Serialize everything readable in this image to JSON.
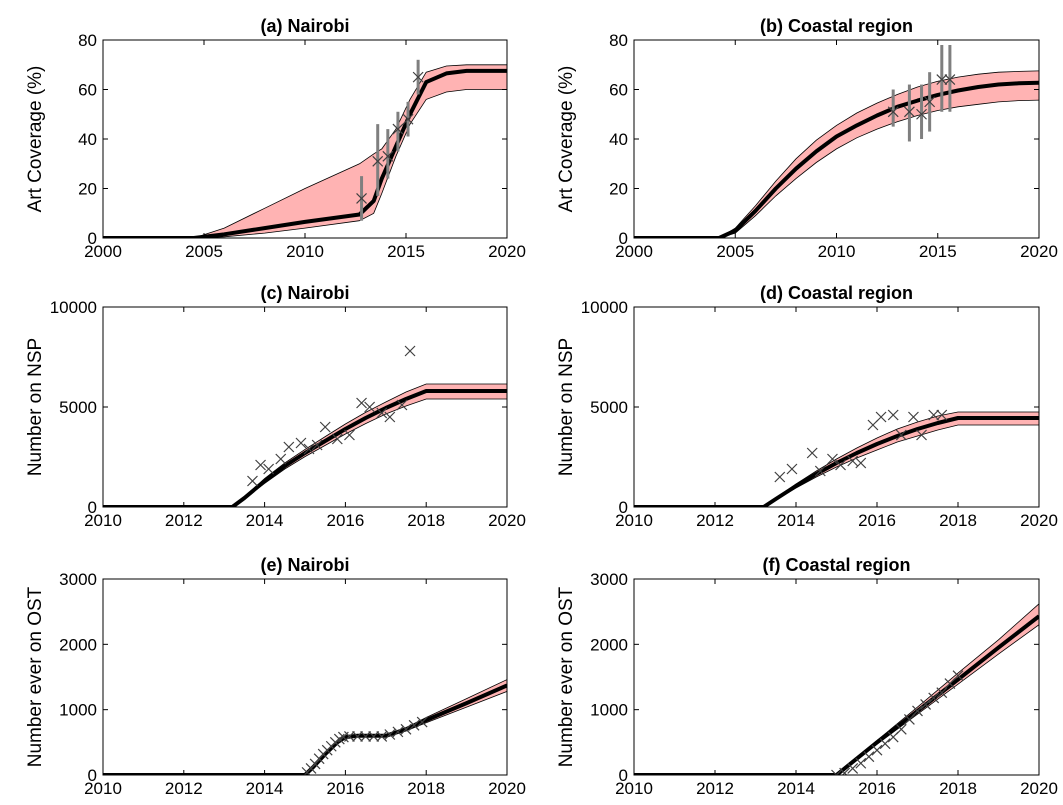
{
  "chart_data": [
    {
      "type": "line",
      "title": "(a) Nairobi",
      "xlabel": "",
      "ylabel": "Art Coverage (%)",
      "xlim": [
        2000,
        2020
      ],
      "ylim": [
        0,
        80
      ],
      "xticks": [
        2000,
        2005,
        2010,
        2015,
        2020
      ],
      "yticks": [
        0,
        20,
        40,
        60,
        80
      ],
      "median": {
        "x": [
          2000,
          2004.5,
          2006,
          2008,
          2010,
          2012.7,
          2013.4,
          2013.8,
          2014.5,
          2015.2,
          2016,
          2017,
          2018,
          2020
        ],
        "y": [
          0,
          0,
          1.5,
          4,
          6.5,
          9.5,
          15,
          24,
          37,
          50,
          63,
          66.5,
          67.5,
          67.5
        ]
      },
      "band_lower": {
        "x": [
          2000,
          2004.5,
          2006,
          2008,
          2010,
          2012.7,
          2013.4,
          2013.8,
          2014.5,
          2015.2,
          2016,
          2017,
          2018,
          2020
        ],
        "y": [
          0,
          0,
          0.5,
          2,
          4,
          7,
          10,
          18,
          33,
          46,
          56,
          59,
          60,
          60
        ]
      },
      "band_upper": {
        "x": [
          2000,
          2004.5,
          2006,
          2008,
          2010,
          2012.7,
          2013.4,
          2013.8,
          2014.5,
          2015.2,
          2016,
          2017,
          2018,
          2020
        ],
        "y": [
          0,
          0,
          4,
          12,
          20,
          30,
          34,
          36,
          44,
          56,
          67,
          69.5,
          70,
          70
        ]
      },
      "observations": [
        {
          "x": 2012.8,
          "y": 16,
          "low": 7,
          "high": 25
        },
        {
          "x": 2013.6,
          "y": 31,
          "low": 17,
          "high": 46
        },
        {
          "x": 2014.1,
          "y": 33,
          "low": 24,
          "high": 44
        },
        {
          "x": 2014.6,
          "y": 44,
          "low": 35,
          "high": 51
        },
        {
          "x": 2015.1,
          "y": 48,
          "low": 41,
          "high": 55
        },
        {
          "x": 2015.6,
          "y": 65,
          "low": 58,
          "high": 72
        }
      ]
    },
    {
      "type": "line",
      "title": "(b) Coastal region",
      "xlabel": "",
      "ylabel": "Art Coverage (%)",
      "xlim": [
        2000,
        2020
      ],
      "ylim": [
        0,
        80
      ],
      "xticks": [
        2000,
        2005,
        2010,
        2015,
        2020
      ],
      "yticks": [
        0,
        20,
        40,
        60,
        80
      ],
      "median": {
        "x": [
          2000,
          2004.2,
          2005,
          2006,
          2007,
          2008,
          2009,
          2010,
          2011,
          2012,
          2013,
          2014,
          2015,
          2016,
          2017,
          2018,
          2019,
          2020
        ],
        "y": [
          0,
          0,
          3,
          11,
          20,
          28,
          35,
          41,
          45.5,
          49.5,
          53,
          55.5,
          57.8,
          59.6,
          61,
          62,
          62.5,
          62.7
        ]
      },
      "band_lower": {
        "x": [
          2000,
          2004.2,
          2005,
          2006,
          2007,
          2008,
          2009,
          2010,
          2011,
          2012,
          2013,
          2014,
          2015,
          2016,
          2017,
          2018,
          2019,
          2020
        ],
        "y": [
          0,
          0,
          2,
          9,
          17,
          24,
          30.5,
          36,
          40.5,
          44,
          47,
          49.5,
          51.5,
          53,
          54,
          55,
          55.5,
          55.7
        ]
      },
      "band_upper": {
        "x": [
          2000,
          2004.2,
          2005,
          2006,
          2007,
          2008,
          2009,
          2010,
          2011,
          2012,
          2013,
          2014,
          2015,
          2016,
          2017,
          2018,
          2019,
          2020
        ],
        "y": [
          0,
          0,
          4,
          13,
          23,
          32,
          39.5,
          45.5,
          50.5,
          54.5,
          58,
          61,
          63.3,
          65,
          66.2,
          67,
          67.3,
          67.5
        ]
      },
      "observations": [
        {
          "x": 2012.8,
          "y": 51,
          "low": 45,
          "high": 60
        },
        {
          "x": 2013.6,
          "y": 51,
          "low": 39,
          "high": 62
        },
        {
          "x": 2014.2,
          "y": 50,
          "low": 40,
          "high": 62
        },
        {
          "x": 2014.6,
          "y": 55,
          "low": 43,
          "high": 67
        },
        {
          "x": 2015.2,
          "y": 64,
          "low": 51,
          "high": 78
        },
        {
          "x": 2015.6,
          "y": 64,
          "low": 51,
          "high": 78
        }
      ]
    },
    {
      "type": "line",
      "title": "(c) Nairobi",
      "xlabel": "",
      "ylabel": "Number on NSP",
      "xlim": [
        2010,
        2020
      ],
      "ylim": [
        0,
        10000
      ],
      "xticks": [
        2010,
        2012,
        2014,
        2016,
        2018,
        2020
      ],
      "yticks": [
        0,
        5000,
        10000
      ],
      "median": {
        "x": [
          2010,
          2013.2,
          2013.5,
          2014,
          2014.5,
          2015,
          2015.5,
          2016,
          2016.5,
          2017,
          2017.5,
          2018,
          2019,
          2020
        ],
        "y": [
          0,
          0,
          450,
          1300,
          2050,
          2700,
          3300,
          3900,
          4450,
          4950,
          5400,
          5800,
          5800,
          5800
        ]
      },
      "band_lower": {
        "x": [
          2010,
          2013.2,
          2013.5,
          2014,
          2014.5,
          2015,
          2015.5,
          2016,
          2016.5,
          2017,
          2017.5,
          2018,
          2019,
          2020
        ],
        "y": [
          0,
          0,
          400,
          1180,
          1900,
          2520,
          3080,
          3650,
          4170,
          4650,
          5050,
          5400,
          5400,
          5400
        ]
      },
      "band_upper": {
        "x": [
          2010,
          2013.2,
          2013.5,
          2014,
          2014.5,
          2015,
          2015.5,
          2016,
          2016.5,
          2017,
          2017.5,
          2018,
          2019,
          2020
        ],
        "y": [
          0,
          0,
          500,
          1420,
          2200,
          2880,
          3520,
          4150,
          4730,
          5250,
          5750,
          6150,
          6150,
          6150
        ]
      },
      "observations": [
        {
          "x": 2013.7,
          "y": 1300
        },
        {
          "x": 2013.9,
          "y": 2100
        },
        {
          "x": 2014.1,
          "y": 1900
        },
        {
          "x": 2014.4,
          "y": 2400
        },
        {
          "x": 2014.6,
          "y": 3000
        },
        {
          "x": 2014.9,
          "y": 3200
        },
        {
          "x": 2015.1,
          "y": 2900
        },
        {
          "x": 2015.3,
          "y": 3100
        },
        {
          "x": 2015.5,
          "y": 4000
        },
        {
          "x": 2015.8,
          "y": 3400
        },
        {
          "x": 2016.1,
          "y": 3600
        },
        {
          "x": 2016.4,
          "y": 5200
        },
        {
          "x": 2016.6,
          "y": 5000
        },
        {
          "x": 2016.9,
          "y": 4700
        },
        {
          "x": 2017.1,
          "y": 4500
        },
        {
          "x": 2017.4,
          "y": 5100
        },
        {
          "x": 2017.6,
          "y": 7800
        }
      ]
    },
    {
      "type": "line",
      "title": "(d) Coastal region",
      "xlabel": "",
      "ylabel": "Number on NSP",
      "xlim": [
        2010,
        2020
      ],
      "ylim": [
        0,
        10000
      ],
      "xticks": [
        2010,
        2012,
        2014,
        2016,
        2018,
        2020
      ],
      "yticks": [
        0,
        5000,
        10000
      ],
      "median": {
        "x": [
          2010,
          2013.2,
          2013.5,
          2014,
          2014.5,
          2015,
          2015.5,
          2016,
          2016.5,
          2017,
          2017.5,
          2018,
          2019,
          2020
        ],
        "y": [
          0,
          0,
          400,
          1050,
          1650,
          2200,
          2700,
          3150,
          3550,
          3900,
          4200,
          4450,
          4450,
          4450
        ]
      },
      "band_lower": {
        "x": [
          2010,
          2013.2,
          2013.5,
          2014,
          2014.5,
          2015,
          2015.5,
          2016,
          2016.5,
          2017,
          2017.5,
          2018,
          2019,
          2020
        ],
        "y": [
          0,
          0,
          350,
          950,
          1500,
          2000,
          2450,
          2850,
          3250,
          3550,
          3850,
          4100,
          4100,
          4100
        ]
      },
      "band_upper": {
        "x": [
          2010,
          2013.2,
          2013.5,
          2014,
          2014.5,
          2015,
          2015.5,
          2016,
          2016.5,
          2017,
          2017.5,
          2018,
          2019,
          2020
        ],
        "y": [
          0,
          0,
          450,
          1150,
          1800,
          2400,
          2950,
          3450,
          3900,
          4250,
          4550,
          4750,
          4750,
          4750
        ]
      },
      "observations": [
        {
          "x": 2013.6,
          "y": 1500
        },
        {
          "x": 2013.9,
          "y": 1900
        },
        {
          "x": 2014.4,
          "y": 2700
        },
        {
          "x": 2014.6,
          "y": 1800
        },
        {
          "x": 2014.9,
          "y": 2400
        },
        {
          "x": 2015.1,
          "y": 2100
        },
        {
          "x": 2015.4,
          "y": 2300
        },
        {
          "x": 2015.6,
          "y": 2200
        },
        {
          "x": 2015.9,
          "y": 4100
        },
        {
          "x": 2016.1,
          "y": 4500
        },
        {
          "x": 2016.4,
          "y": 4600
        },
        {
          "x": 2016.6,
          "y": 3600
        },
        {
          "x": 2016.9,
          "y": 4500
        },
        {
          "x": 2017.1,
          "y": 3600
        },
        {
          "x": 2017.4,
          "y": 4600
        },
        {
          "x": 2017.6,
          "y": 4600
        }
      ]
    },
    {
      "type": "line",
      "title": "(e) Nairobi",
      "xlabel": "",
      "ylabel": "Number ever on OST",
      "xlim": [
        2010,
        2020
      ],
      "ylim": [
        0,
        3000
      ],
      "xticks": [
        2010,
        2012,
        2014,
        2016,
        2018,
        2020
      ],
      "yticks": [
        0,
        1000,
        2000,
        3000
      ],
      "median": {
        "x": [
          2010,
          2015.0,
          2015.2,
          2015.5,
          2015.8,
          2016.0,
          2016.3,
          2017.0,
          2017.5,
          2018.0,
          2019.0,
          2020.0
        ],
        "y": [
          0,
          0,
          120,
          320,
          500,
          580,
          600,
          600,
          700,
          840,
          1100,
          1370
        ]
      },
      "band_lower": {
        "x": [
          2010,
          2015.0,
          2015.2,
          2015.5,
          2015.8,
          2016.0,
          2016.3,
          2017.0,
          2017.5,
          2018.0,
          2019.0,
          2020.0
        ],
        "y": [
          0,
          0,
          110,
          300,
          480,
          560,
          580,
          580,
          675,
          800,
          1040,
          1280
        ]
      },
      "band_upper": {
        "x": [
          2010,
          2015.0,
          2015.2,
          2015.5,
          2015.8,
          2016.0,
          2016.3,
          2017.0,
          2017.5,
          2018.0,
          2019.0,
          2020.0
        ],
        "y": [
          0,
          0,
          130,
          340,
          520,
          600,
          620,
          620,
          725,
          880,
          1170,
          1460
        ]
      },
      "observations": [
        {
          "x": 2015.05,
          "y": 40
        },
        {
          "x": 2015.15,
          "y": 100
        },
        {
          "x": 2015.25,
          "y": 170
        },
        {
          "x": 2015.35,
          "y": 250
        },
        {
          "x": 2015.45,
          "y": 320
        },
        {
          "x": 2015.55,
          "y": 380
        },
        {
          "x": 2015.65,
          "y": 440
        },
        {
          "x": 2015.75,
          "y": 500
        },
        {
          "x": 2015.85,
          "y": 550
        },
        {
          "x": 2015.95,
          "y": 580
        },
        {
          "x": 2016.1,
          "y": 590
        },
        {
          "x": 2016.3,
          "y": 590
        },
        {
          "x": 2016.5,
          "y": 590
        },
        {
          "x": 2016.7,
          "y": 590
        },
        {
          "x": 2016.9,
          "y": 590
        },
        {
          "x": 2017.1,
          "y": 620
        },
        {
          "x": 2017.3,
          "y": 660
        },
        {
          "x": 2017.5,
          "y": 700
        },
        {
          "x": 2017.7,
          "y": 760
        },
        {
          "x": 2017.9,
          "y": 810
        }
      ]
    },
    {
      "type": "line",
      "title": "(f) Coastal region",
      "xlabel": "",
      "ylabel": "Number ever on OST",
      "xlim": [
        2010,
        2020
      ],
      "ylim": [
        0,
        3000
      ],
      "xticks": [
        2010,
        2012,
        2014,
        2016,
        2018,
        2020
      ],
      "yticks": [
        0,
        1000,
        2000,
        3000
      ],
      "median": {
        "x": [
          2010,
          2015.0,
          2016,
          2017,
          2018,
          2019,
          2020
        ],
        "y": [
          0,
          0,
          500,
          980,
          1460,
          1950,
          2430
        ]
      },
      "band_lower": {
        "x": [
          2010,
          2015.0,
          2016,
          2017,
          2018,
          2019,
          2020
        ],
        "y": [
          0,
          0,
          470,
          930,
          1390,
          1850,
          2300
        ]
      },
      "band_upper": {
        "x": [
          2010,
          2015.0,
          2016,
          2017,
          2018,
          2019,
          2020
        ],
        "y": [
          0,
          0,
          530,
          1040,
          1560,
          2070,
          2620
        ]
      },
      "observations": [
        {
          "x": 2015.0,
          "y": 0
        },
        {
          "x": 2015.2,
          "y": 30
        },
        {
          "x": 2015.4,
          "y": 100
        },
        {
          "x": 2015.6,
          "y": 180
        },
        {
          "x": 2015.8,
          "y": 280
        },
        {
          "x": 2016.0,
          "y": 380
        },
        {
          "x": 2016.2,
          "y": 480
        },
        {
          "x": 2016.4,
          "y": 580
        },
        {
          "x": 2016.6,
          "y": 700
        },
        {
          "x": 2016.8,
          "y": 850
        },
        {
          "x": 2017.0,
          "y": 980
        },
        {
          "x": 2017.2,
          "y": 1080
        },
        {
          "x": 2017.4,
          "y": 1180
        },
        {
          "x": 2017.6,
          "y": 1260
        },
        {
          "x": 2017.8,
          "y": 1400
        },
        {
          "x": 2018.0,
          "y": 1520
        }
      ]
    }
  ],
  "colors": {
    "band_fill": "#ffb3b3",
    "band_edge": "#000000",
    "median_line": "#000000",
    "error_bar": "#7f7f7f",
    "marker": "#404040",
    "axis": "#000000"
  }
}
